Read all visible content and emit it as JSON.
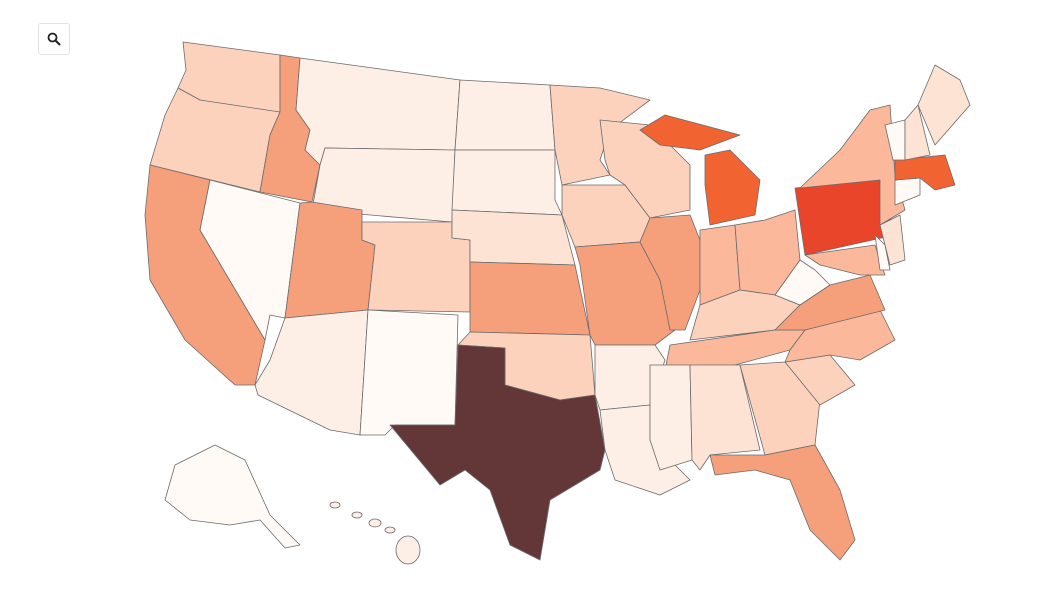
{
  "toolbar": {
    "zoom_icon": "search-icon"
  },
  "map": {
    "type": "choropleth",
    "region": "United States",
    "color_scale": [
      "#fffaf5",
      "#fdeee6",
      "#fde3d3",
      "#fcd2bd",
      "#fbb89a",
      "#f6a07b",
      "#f16432",
      "#e8452a",
      "#633638"
    ],
    "state_fills": {
      "WA": "#fcd2bd",
      "OR": "#fcd2bd",
      "CA": "#f6a07b",
      "NV": "#fffaf5",
      "ID": "#f6a07b",
      "MT": "#fdeee6",
      "WY": "#fdeee6",
      "UT": "#f6a07b",
      "CO": "#fcd2bd",
      "AZ": "#fdeee6",
      "NM": "#fffaf5",
      "ND": "#fdeee6",
      "SD": "#fdeee6",
      "NE": "#fde3d3",
      "KS": "#f6a07b",
      "OK": "#fcd2bd",
      "TX": "#633638",
      "MN": "#fcd2bd",
      "IA": "#fcd2bd",
      "MO": "#f6a07b",
      "AR": "#fdeee6",
      "LA": "#fdeee6",
      "WI": "#fcd2bd",
      "IL": "#f6a07b",
      "MI": "#f16432",
      "IN": "#fbb89a",
      "OH": "#fbb89a",
      "KY": "#fcd2bd",
      "TN": "#fbb89a",
      "MS": "#fdeee6",
      "AL": "#fde3d3",
      "GA": "#fcd2bd",
      "FL": "#f6a07b",
      "SC": "#fcd2bd",
      "NC": "#fbb89a",
      "VA": "#f6a07b",
      "WV": "#fffaf5",
      "PA": "#e8452a",
      "NY": "#fbb89a",
      "MD": "#fbb89a",
      "DE": "#fffaf5",
      "NJ": "#fde3d3",
      "CT": "#fffaf5",
      "MA": "#f16432",
      "VT": "#fffaf5",
      "NH": "#fde3d3",
      "ME": "#fde3d3",
      "AK": "#fffaf5",
      "HI": "#fdeee6"
    }
  }
}
